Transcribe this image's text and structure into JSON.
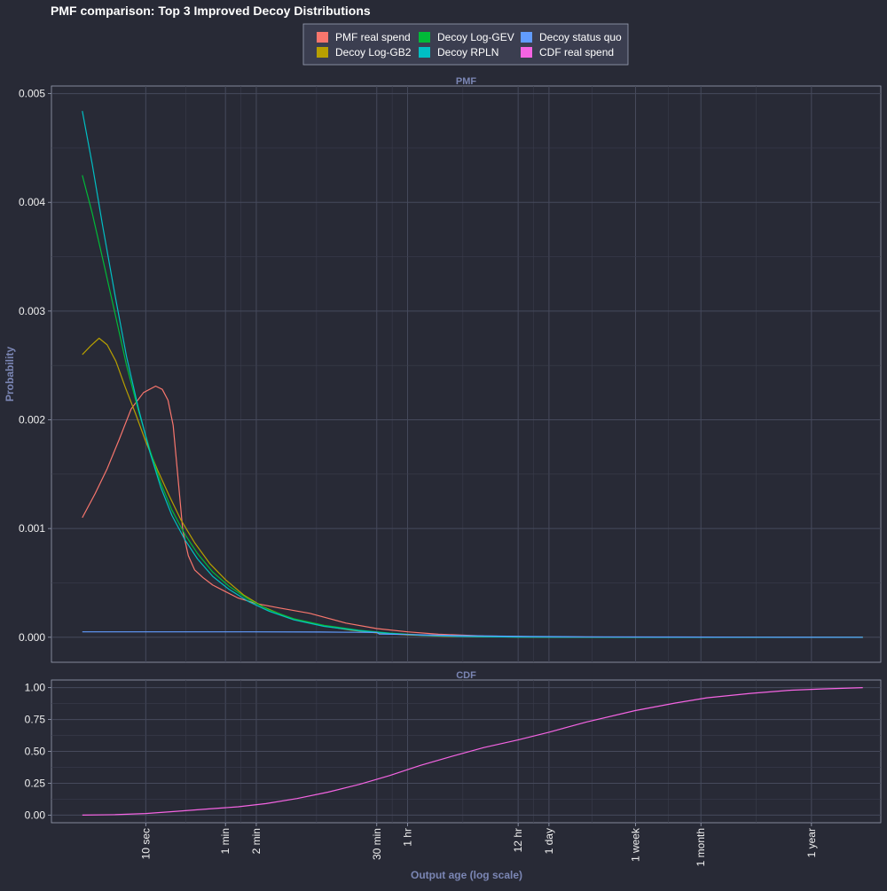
{
  "chart_data": {
    "type": "line",
    "title": "PMF comparison: Top 3 Improved Decoy Distributions",
    "xlabel": "Output age (log scale)",
    "x_scale": "log",
    "x_unit": "seconds",
    "xlim_seconds": [
      1.2,
      150000000
    ],
    "x_ticks": [
      {
        "label": "10 sec",
        "seconds": 10
      },
      {
        "label": "1 min",
        "seconds": 60
      },
      {
        "label": "2 min",
        "seconds": 120
      },
      {
        "label": "30 min",
        "seconds": 1800
      },
      {
        "label": "1 hr",
        "seconds": 3600
      },
      {
        "label": "12 hr",
        "seconds": 43200
      },
      {
        "label": "1 day",
        "seconds": 86400
      },
      {
        "label": "1 week",
        "seconds": 604800
      },
      {
        "label": "1 month",
        "seconds": 2629800
      },
      {
        "label": "1 year",
        "seconds": 31557600
      }
    ],
    "legend": {
      "placement": "top",
      "entries": [
        {
          "label": "PMF real spend",
          "color": "#f8766d"
        },
        {
          "label": "Decoy Log-GB2",
          "color": "#b79f00"
        },
        {
          "label": "Decoy Log-GEV",
          "color": "#00ba38"
        },
        {
          "label": "Decoy RPLN",
          "color": "#00bfc4"
        },
        {
          "label": "Decoy status quo",
          "color": "#619cff"
        },
        {
          "label": "CDF real spend",
          "color": "#f564e3"
        }
      ]
    },
    "panels": [
      {
        "strip": "PMF",
        "ylabel": "Probability",
        "ylim": [
          -0.00023,
          0.00507
        ],
        "y_ticks": [
          "0.000",
          "0.001",
          "0.002",
          "0.003",
          "0.004",
          "0.005"
        ],
        "series": [
          {
            "name": "PMF real spend",
            "color": "#f8766d",
            "x": [
              2.4,
              3.2,
              4.2,
              5.5,
              7.2,
              9.5,
              12.5,
              14.5,
              16.5,
              18.5,
              20.5,
              23,
              26,
              30,
              36,
              45,
              60,
              80,
              120,
              200,
              400,
              900,
              1800,
              3600,
              7200,
              20000,
              80000,
              500000,
              5000000,
              100000000
            ],
            "y": [
              0.0011,
              0.00132,
              0.00155,
              0.00182,
              0.0021,
              0.00225,
              0.00231,
              0.00228,
              0.00218,
              0.00195,
              0.0015,
              0.00098,
              0.00075,
              0.00062,
              0.00055,
              0.00048,
              0.00042,
              0.00036,
              0.00031,
              0.00027,
              0.00022,
              0.00013,
              8e-05,
              5e-05,
              2.8e-05,
              1.2e-05,
              4e-06,
              1e-06,
              2e-07,
              0.0
            ]
          },
          {
            "name": "Decoy Log-GB2",
            "color": "#b79f00",
            "x": [
              2.4,
              2.9,
              3.5,
              4.2,
              5.1,
              6.3,
              8,
              10,
              13,
              17,
              22,
              30,
              42,
              60,
              90,
              140,
              250,
              500,
              1000,
              1800,
              3600,
              8000,
              20000,
              60000,
              200000,
              1000000,
              10000000,
              100000000
            ],
            "y": [
              0.0026,
              0.00268,
              0.00275,
              0.00269,
              0.00254,
              0.0023,
              0.00205,
              0.0018,
              0.00154,
              0.0013,
              0.00108,
              0.00087,
              0.00068,
              0.00053,
              0.00039,
              0.00028,
              0.00018,
              0.00011,
              6.5e-05,
              4e-05,
              2.2e-05,
              1e-05,
              4e-06,
              1.5e-06,
              5e-07,
              1e-07,
              0.0,
              0.0
            ]
          },
          {
            "name": "Decoy Log-GEV",
            "color": "#00ba38",
            "x": [
              2.4,
              3,
              3.8,
              5,
              6.5,
              8.5,
              11,
              14,
              18,
              24,
              32,
              45,
              65,
              100,
              160,
              280,
              550,
              1200,
              2400,
              5000,
              12000,
              40000,
              150000,
              1000000,
              10000000,
              100000000
            ],
            "y": [
              0.00425,
              0.0039,
              0.00348,
              0.00298,
              0.0025,
              0.00208,
              0.00172,
              0.00142,
              0.00117,
              0.00095,
              0.00077,
              0.0006,
              0.00047,
              0.00035,
              0.00025,
              0.00017,
              0.00011,
              6.5e-05,
              3.8e-05,
              2e-05,
              8e-06,
              2e-06,
              5e-07,
              0.0,
              0.0,
              0.0
            ]
          },
          {
            "name": "Decoy RPLN",
            "color": "#00bfc4",
            "x": [
              2.4,
              3,
              3.8,
              5,
              6.5,
              8.5,
              11,
              14,
              18,
              24,
              32,
              45,
              65,
              100,
              160,
              280,
              550,
              1200,
              2400,
              5000,
              12000,
              40000,
              150000,
              1000000,
              10000000,
              100000000
            ],
            "y": [
              0.00484,
              0.00435,
              0.00378,
              0.00315,
              0.00258,
              0.0021,
              0.0017,
              0.00138,
              0.00112,
              0.0009,
              0.00072,
              0.00056,
              0.00044,
              0.00033,
              0.00024,
              0.00016,
              0.0001,
              6e-05,
              3.5e-05,
              1.8e-05,
              7e-06,
              2e-06,
              5e-07,
              0.0,
              0.0,
              0.0
            ]
          },
          {
            "name": "Decoy status quo",
            "color": "#619cff",
            "x": [
              2.4,
              20,
              100,
              500,
              1200,
              1800,
              1900,
              3600,
              10000,
              50000,
              200000,
              1000000,
              10000000,
              100000000
            ],
            "y": [
              5e-05,
              5e-05,
              5e-05,
              4.8e-05,
              4.6e-05,
              4.4e-05,
              3e-05,
              2.5e-05,
              1.6e-05,
              8e-06,
              4e-06,
              2e-06,
              5e-07,
              0.0
            ]
          }
        ]
      },
      {
        "strip": "CDF",
        "ylabel": "",
        "ylim": [
          -0.06,
          1.06
        ],
        "y_ticks": [
          "0.00",
          "0.25",
          "0.50",
          "0.75",
          "1.00"
        ],
        "series": [
          {
            "name": "CDF real spend",
            "color": "#f564e3",
            "x": [
              2.4,
              5,
              10,
              20,
              40,
              80,
              150,
              300,
              600,
              1200,
              2400,
              4800,
              9600,
              20000,
              43200,
              86400,
              200000,
              600000,
              1500000,
              3000000,
              8000000,
              20000000,
              40000000,
              100000000
            ],
            "y": [
              0.0,
              0.003,
              0.012,
              0.03,
              0.048,
              0.065,
              0.09,
              0.13,
              0.18,
              0.24,
              0.31,
              0.39,
              0.46,
              0.53,
              0.59,
              0.65,
              0.73,
              0.82,
              0.88,
              0.92,
              0.955,
              0.98,
              0.99,
              1.0
            ]
          }
        ]
      }
    ]
  }
}
